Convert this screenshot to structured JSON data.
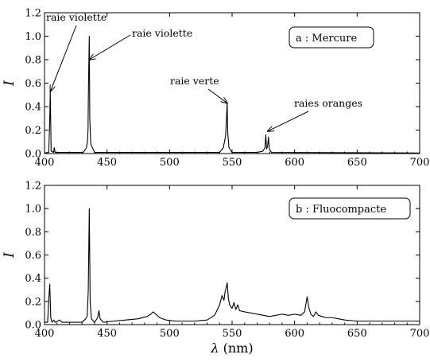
{
  "chart_data": [
    {
      "type": "line",
      "legend": "a  : Mercure",
      "ylabel": "I",
      "xlabel": "",
      "xlim": [
        400,
        700
      ],
      "ylim": [
        0,
        1.2
      ],
      "xticks": [
        400,
        450,
        500,
        550,
        600,
        650,
        700
      ],
      "xtick_labels": [
        "400",
        "450",
        "500",
        "550",
        "600",
        "650",
        "700"
      ],
      "yticks": [
        0,
        0.2,
        0.4,
        0.6,
        0.8,
        1.0,
        1.2
      ],
      "ytick_labels": [
        "0.0",
        "0.2",
        "0.4",
        "0.6",
        "0.8",
        "1.0",
        "1.2"
      ],
      "legend_position": "top-right",
      "grid": false,
      "series": [
        {
          "x": [
            400,
            403.4,
            404.1,
            404.6,
            405.3,
            407.3,
            407.8,
            408.5,
            431,
            433.5,
            434.3,
            434.8,
            435.2,
            435.8,
            436.2,
            437,
            440,
            540,
            543,
            544.8,
            545.5,
            546.07,
            546.5,
            547.5,
            550,
            570,
            574.5,
            576.3,
            576.96,
            577.6,
            578.4,
            579.07,
            579.8,
            581.5,
            700
          ],
          "y": [
            0.005,
            0.01,
            0.25,
            0.53,
            0.02,
            0.01,
            0.05,
            0.01,
            0.01,
            0.05,
            0.1,
            0.2,
            0.6,
            1.0,
            0.3,
            0.08,
            0.01,
            0.01,
            0.05,
            0.15,
            0.3,
            0.43,
            0.18,
            0.05,
            0.01,
            0.01,
            0.02,
            0.05,
            0.16,
            0.04,
            0.06,
            0.14,
            0.04,
            0.01,
            0.005
          ]
        }
      ],
      "annotations": [
        {
          "text": "raie violette",
          "x": 404.7,
          "y": 0.53
        },
        {
          "text": "raie violette",
          "x": 435.8,
          "y": 0.8
        },
        {
          "text": "raie verte",
          "x": 546.1,
          "y": 0.43
        },
        {
          "text": "raies oranges",
          "x": 578.5,
          "y": 0.19
        }
      ]
    },
    {
      "type": "line",
      "legend": "b  : Fluocompacte",
      "ylabel": "I",
      "xlabel": "λ (nm)",
      "xlim": [
        400,
        700
      ],
      "ylim": [
        0,
        1.2
      ],
      "xticks": [
        400,
        450,
        500,
        550,
        600,
        650,
        700
      ],
      "xtick_labels": [
        "400",
        "450",
        "500",
        "550",
        "600",
        "650",
        "700"
      ],
      "yticks": [
        0,
        0.2,
        0.4,
        0.6,
        0.8,
        1.0,
        1.2
      ],
      "ytick_labels": [
        "0.0",
        "0.2",
        "0.4",
        "0.6",
        "0.8",
        "1.0",
        "1.2"
      ],
      "legend_position": "top-right",
      "grid": false,
      "series": [
        {
          "x": [
            400,
            402.5,
            403.3,
            404.2,
            405.0,
            406.0,
            407.5,
            408.5,
            410.5,
            412,
            414,
            430,
            433,
            434.2,
            435.0,
            435.8,
            436.5,
            437.5,
            440,
            442.5,
            443.5,
            444.5,
            447,
            455,
            465,
            475,
            482,
            485,
            487,
            489,
            492,
            497,
            505,
            520,
            530,
            536,
            540,
            542,
            543.5,
            544.5,
            545.5,
            546.1,
            547,
            548,
            550,
            551.5,
            553,
            554.5,
            556,
            560,
            565,
            570,
            575,
            580,
            585,
            590,
            595,
            600,
            605,
            608,
            610,
            611.5,
            613,
            615,
            617,
            619,
            622,
            625,
            630,
            635,
            640,
            650,
            670,
            700
          ],
          "y": [
            0.02,
            0.02,
            0.2,
            0.35,
            0.06,
            0.02,
            0.04,
            0.02,
            0.03,
            0.04,
            0.02,
            0.02,
            0.05,
            0.08,
            0.3,
            1.0,
            0.2,
            0.05,
            0.02,
            0.06,
            0.12,
            0.05,
            0.02,
            0.03,
            0.04,
            0.05,
            0.07,
            0.09,
            0.11,
            0.09,
            0.06,
            0.04,
            0.03,
            0.03,
            0.04,
            0.08,
            0.17,
            0.25,
            0.21,
            0.29,
            0.33,
            0.36,
            0.23,
            0.17,
            0.14,
            0.19,
            0.13,
            0.17,
            0.12,
            0.11,
            0.1,
            0.09,
            0.08,
            0.07,
            0.08,
            0.09,
            0.08,
            0.09,
            0.08,
            0.11,
            0.24,
            0.14,
            0.09,
            0.07,
            0.11,
            0.08,
            0.07,
            0.06,
            0.06,
            0.05,
            0.04,
            0.03,
            0.03,
            0.03
          ]
        }
      ],
      "annotations": []
    }
  ]
}
